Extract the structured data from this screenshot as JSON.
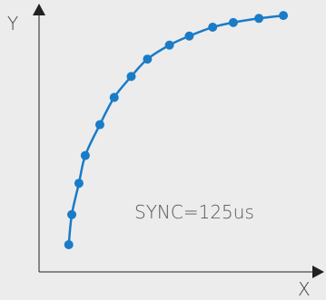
{
  "chart_data": {
    "type": "line",
    "title": "",
    "xlabel": "X",
    "ylabel": "Y",
    "xlim": [
      0,
      100
    ],
    "ylim": [
      0,
      100
    ],
    "grid": false,
    "annotation": "SYNC=125us",
    "color": "#1a7bc7",
    "series": [
      {
        "x": [
          10.8,
          11.9,
          14.5,
          16.8,
          22.1,
          27.3,
          33.5,
          39.4,
          47.4,
          54.6,
          63.1,
          70.6,
          79.9,
          88.8
        ],
        "y": [
          10.5,
          22.1,
          34.2,
          44.9,
          56.8,
          67.3,
          75.4,
          82.1,
          87.5,
          91.0,
          94.4,
          96.2,
          97.8,
          98.9
        ]
      }
    ]
  }
}
